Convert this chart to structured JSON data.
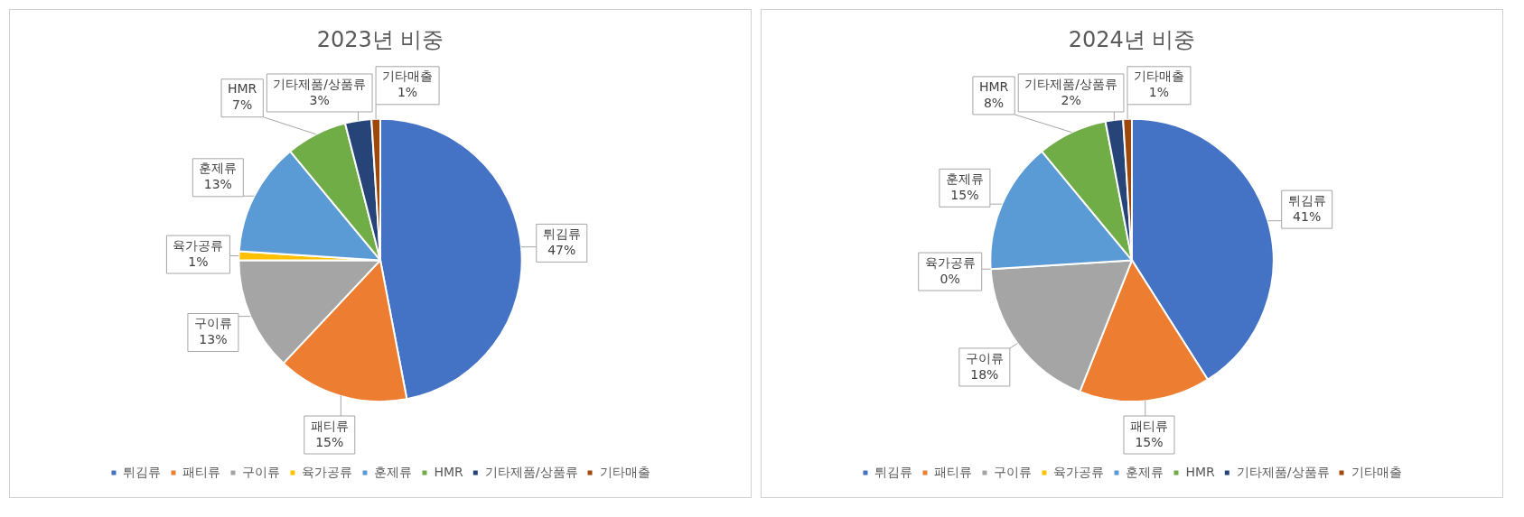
{
  "chart_data": [
    {
      "type": "pie",
      "title": "2023년 비중",
      "categories": [
        "튀김류",
        "패티류",
        "구이류",
        "육가공류",
        "훈제류",
        "HMR",
        "기타제품/상품류",
        "기타매출"
      ],
      "values": [
        47,
        15,
        13,
        1,
        13,
        7,
        3,
        1
      ],
      "colors": [
        "#4472c4",
        "#ed7d31",
        "#a5a5a5",
        "#ffc000",
        "#5b9bd5",
        "#70ad47",
        "#264478",
        "#9e480e"
      ],
      "value_labels": [
        "47%",
        "15%",
        "13%",
        "1%",
        "13%",
        "7%",
        "3%",
        "1%"
      ],
      "legend": "bottom"
    },
    {
      "type": "pie",
      "title": "2024년 비중",
      "categories": [
        "튀김류",
        "패티류",
        "구이류",
        "육가공류",
        "훈제류",
        "HMR",
        "기타제품/상품류",
        "기타매출"
      ],
      "values": [
        41,
        15,
        18,
        0,
        15,
        8,
        2,
        1
      ],
      "colors": [
        "#4472c4",
        "#ed7d31",
        "#a5a5a5",
        "#ffc000",
        "#5b9bd5",
        "#70ad47",
        "#264478",
        "#9e480e"
      ],
      "value_labels": [
        "41%",
        "15%",
        "18%",
        "0%",
        "15%",
        "8%",
        "2%",
        "1%"
      ],
      "legend": "bottom"
    }
  ]
}
